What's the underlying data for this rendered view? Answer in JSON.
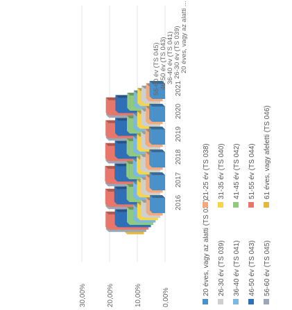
{
  "chart_data": {
    "type": "bar",
    "layout": "3d-grouped-column",
    "orientation": "rotated-90-ccw",
    "title": "",
    "xlabel": "",
    "ylabel": "",
    "categories": [
      "2016",
      "2017",
      "2018",
      "2019",
      "2020",
      "2021"
    ],
    "y_ticks": [
      "0,00%",
      "10,00%",
      "20,00%",
      "30,00%"
    ],
    "ylim": [
      0,
      0.3
    ],
    "series": [
      {
        "name": "20 éves, vagy az alatti (TS 037)",
        "color": "#4a90c9",
        "values": [
          0.045,
          0.046,
          0.047,
          0.048,
          0.047,
          0.046
        ]
      },
      {
        "name": "21-25 év (TS 038)",
        "color": "#f2a97c",
        "values": [
          0.05,
          0.051,
          0.052,
          0.053,
          0.051,
          0.05
        ]
      },
      {
        "name": "26-30 év (TS 039)",
        "color": "#cfcfcf",
        "values": [
          0.06,
          0.061,
          0.062,
          0.06,
          0.059,
          0.058
        ]
      },
      {
        "name": "31-35 év (TS 040)",
        "color": "#f5d64a",
        "values": [
          0.065,
          0.066,
          0.067,
          0.066,
          0.065,
          0.064
        ]
      },
      {
        "name": "36-40 év (TS 041)",
        "color": "#7bb9e0",
        "values": [
          0.07,
          0.071,
          0.072,
          0.071,
          0.07,
          0.069
        ]
      },
      {
        "name": "41-45 év (TS 042)",
        "color": "#8fca7f",
        "values": [
          0.085,
          0.086,
          0.087,
          0.086,
          0.085,
          0.084
        ]
      },
      {
        "name": "46-50 év (TS 043)",
        "color": "#2f6fb5",
        "values": [
          0.12,
          0.122,
          0.121,
          0.12,
          0.119,
          0.118
        ]
      },
      {
        "name": "51-55 év (TS 044)",
        "color": "#e8766b",
        "values": [
          0.145,
          0.146,
          0.147,
          0.146,
          0.145,
          0.144
        ]
      },
      {
        "name": "56-60 év (TS 045)",
        "color": "#9aa7b5",
        "values": [
          0.135,
          0.136,
          0.137,
          0.136,
          0.135,
          0.134
        ]
      },
      {
        "name": "61 éves, vagy afeletti (TS 046)",
        "color": "#e6b93a",
        "values": [
          0.06,
          0.061,
          0.062,
          0.061,
          0.06,
          0.059
        ]
      }
    ],
    "depth_axis_labels": [
      "20 éves, vagy az alatti ...",
      "26-30 év (TS 039)",
      "36-40 év (TS 041)",
      "46-50 év (TS 043)",
      "56-60 év (TS 045)"
    ],
    "legend": "bottom",
    "grid": true
  }
}
